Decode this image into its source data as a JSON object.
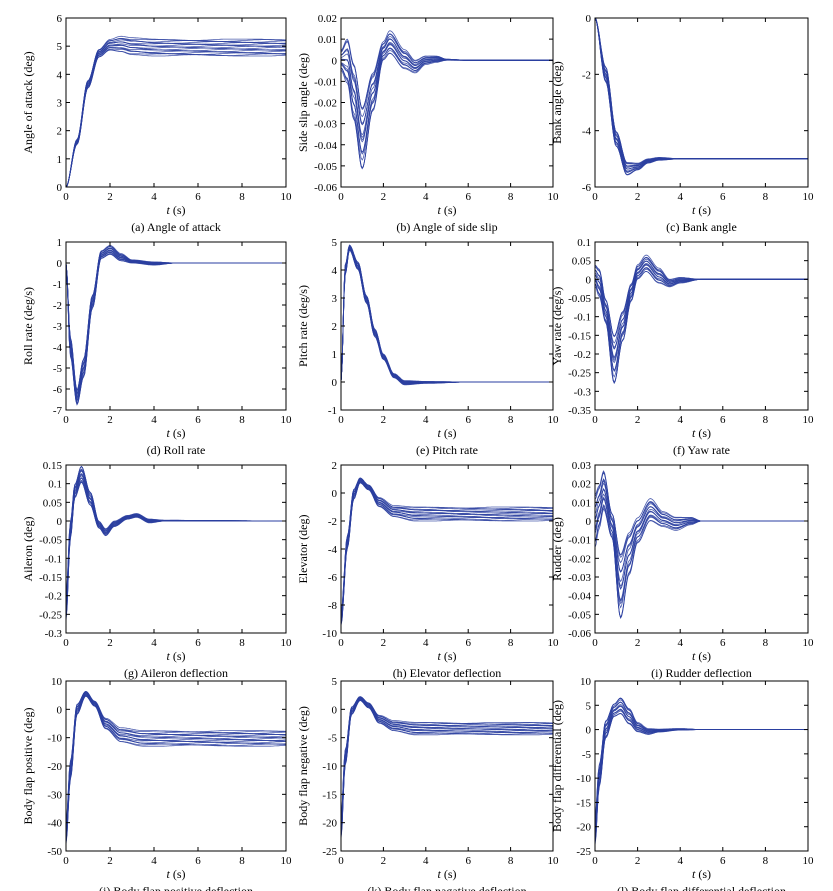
{
  "line_color": "#2b3fa0",
  "chart_data": [
    {
      "type": "line",
      "panel": "a",
      "caption": "(a) Angle of attack",
      "xlabel_var": "t",
      "xlabel_unit": " (s)",
      "ylabel": "Angle of attack (deg)",
      "xlim": [
        0,
        10
      ],
      "ylim": [
        0,
        6
      ],
      "xticks": [
        "0",
        "2",
        "4",
        "6",
        "8",
        "10"
      ],
      "yticks": [
        "0",
        "1",
        "2",
        "3",
        "4",
        "5",
        "6"
      ],
      "envelope": {
        "t": [
          0,
          0.5,
          1,
          1.5,
          2,
          2.5,
          3,
          4,
          6,
          10
        ],
        "lower": [
          0,
          1.5,
          3.5,
          4.6,
          4.85,
          4.8,
          4.7,
          4.65,
          4.65,
          4.65
        ],
        "upper": [
          0,
          1.7,
          3.8,
          4.9,
          5.25,
          5.35,
          5.3,
          5.25,
          5.25,
          5.25
        ]
      }
    },
    {
      "type": "line",
      "panel": "b",
      "caption": "(b) Angle of side slip",
      "xlabel_var": "t",
      "xlabel_unit": " (s)",
      "ylabel": "Side slip angle (deg)",
      "xlim": [
        0,
        10
      ],
      "ylim": [
        -0.06,
        0.02
      ],
      "xticks": [
        "0",
        "2",
        "4",
        "6",
        "8",
        "10"
      ],
      "yticks": [
        "-0.06",
        "-0.05",
        "-0.04",
        "-0.03",
        "-0.02",
        "-0.01",
        "0",
        "0.01",
        "0.02"
      ],
      "envelope": {
        "t": [
          0,
          0.3,
          0.6,
          1.0,
          1.5,
          2.0,
          2.3,
          3.0,
          3.5,
          4.0,
          4.5,
          5.0,
          6.0,
          10
        ],
        "lower": [
          -0.005,
          -0.012,
          -0.03,
          -0.054,
          -0.025,
          0.0,
          0.003,
          -0.004,
          -0.006,
          -0.002,
          -0.001,
          0.0,
          0.0,
          0.0
        ],
        "upper": [
          0.005,
          0.011,
          0.0,
          -0.02,
          -0.005,
          0.009,
          0.014,
          0.005,
          0.0,
          0.002,
          0.002,
          0.0005,
          0.0,
          0.0
        ]
      }
    },
    {
      "type": "line",
      "panel": "c",
      "caption": "(c) Bank angle",
      "xlabel_var": "t",
      "xlabel_unit": " (s)",
      "ylabel": "Bank angle (deg)",
      "xlim": [
        0,
        10
      ],
      "ylim": [
        -6,
        0
      ],
      "xticks": [
        "0",
        "2",
        "4",
        "6",
        "8",
        "10"
      ],
      "yticks": [
        "-6",
        "-4",
        "-2",
        "0"
      ],
      "envelope": {
        "t": [
          0,
          0.5,
          1.0,
          1.5,
          2.0,
          2.5,
          3.0,
          4.0,
          5.0,
          10
        ],
        "lower": [
          0,
          -2.3,
          -4.6,
          -5.6,
          -5.4,
          -5.15,
          -5.05,
          -5.0,
          -5.0,
          -5.0
        ],
        "upper": [
          0,
          -1.7,
          -4.0,
          -5.1,
          -5.15,
          -5.0,
          -4.95,
          -5.0,
          -5.0,
          -5.0
        ]
      }
    },
    {
      "type": "line",
      "panel": "d",
      "caption": "(d) Roll rate",
      "xlabel_var": "t",
      "xlabel_unit": " (s)",
      "ylabel": "Roll rate (deg/s)",
      "xlim": [
        0,
        10
      ],
      "ylim": [
        -7,
        1
      ],
      "xticks": [
        "0",
        "2",
        "4",
        "6",
        "8",
        "10"
      ],
      "yticks": [
        "-7",
        "-6",
        "-5",
        "-4",
        "-3",
        "-2",
        "-1",
        "0",
        "1"
      ],
      "envelope": {
        "t": [
          0,
          0.2,
          0.5,
          0.8,
          1.2,
          1.6,
          2.0,
          2.5,
          3.0,
          4.0,
          5.0,
          10
        ],
        "lower": [
          0,
          -4.5,
          -6.8,
          -5.5,
          -2.2,
          0.2,
          0.4,
          0.1,
          0.0,
          -0.1,
          0.0,
          0.0
        ],
        "upper": [
          0,
          -3.5,
          -6.0,
          -4.5,
          -1.5,
          0.6,
          0.85,
          0.45,
          0.15,
          0.05,
          0.0,
          0.0
        ]
      }
    },
    {
      "type": "line",
      "panel": "e",
      "caption": "(e) Pitch rate",
      "xlabel_var": "t",
      "xlabel_unit": " (s)",
      "ylabel": "Pitch rate (deg/s)",
      "xlim": [
        0,
        10
      ],
      "ylim": [
        -1,
        5
      ],
      "xticks": [
        "0",
        "2",
        "4",
        "6",
        "8",
        "10"
      ],
      "yticks": [
        "-1",
        "0",
        "1",
        "2",
        "3",
        "4",
        "5"
      ],
      "envelope": {
        "t": [
          0,
          0.2,
          0.4,
          0.8,
          1.2,
          1.6,
          2.0,
          2.5,
          3.0,
          4.0,
          6.0,
          10
        ],
        "lower": [
          0,
          3.8,
          4.7,
          4.0,
          2.8,
          1.6,
          0.8,
          0.15,
          -0.1,
          -0.05,
          0.0,
          0.0
        ],
        "upper": [
          0,
          4.2,
          4.9,
          4.3,
          3.1,
          1.9,
          1.0,
          0.3,
          0.05,
          0.02,
          0.0,
          0.0
        ]
      }
    },
    {
      "type": "line",
      "panel": "f",
      "caption": "(f) Yaw rate",
      "xlabel_var": "t",
      "xlabel_unit": " (s)",
      "ylabel": "Yaw rate (deg/s)",
      "xlim": [
        0,
        10
      ],
      "ylim": [
        -0.35,
        0.1
      ],
      "xticks": [
        "0",
        "2",
        "4",
        "6",
        "8",
        "10"
      ],
      "yticks": [
        "-0.35",
        "-0.3",
        "-0.25",
        "-0.2",
        "-0.15",
        "-0.1",
        "-0.05",
        "0",
        "0.05",
        "0.1"
      ],
      "envelope": {
        "t": [
          0,
          0.2,
          0.5,
          0.9,
          1.3,
          1.7,
          2.0,
          2.4,
          3.0,
          3.5,
          4.0,
          5.0,
          10
        ],
        "lower": [
          -0.02,
          -0.05,
          -0.12,
          -0.29,
          -0.17,
          -0.06,
          0.0,
          0.02,
          -0.01,
          -0.02,
          -0.01,
          0.0,
          0.0
        ],
        "upper": [
          0.04,
          0.03,
          -0.05,
          -0.14,
          -0.08,
          -0.01,
          0.04,
          0.065,
          0.03,
          0.0,
          0.005,
          0.0,
          0.0
        ]
      }
    },
    {
      "type": "line",
      "panel": "g",
      "caption": "(g) Aileron deflection",
      "xlabel_var": "t",
      "xlabel_unit": " (s)",
      "ylabel": "Aileron (deg)",
      "xlim": [
        0,
        10
      ],
      "ylim": [
        -0.3,
        0.15
      ],
      "xticks": [
        "0",
        "2",
        "4",
        "6",
        "8",
        "10"
      ],
      "yticks": [
        "-0.3",
        "-0.25",
        "-0.2",
        "-0.15",
        "-0.1",
        "-0.05",
        "0",
        "0.05",
        "0.1",
        "0.15"
      ],
      "envelope": {
        "t": [
          0,
          0.2,
          0.4,
          0.7,
          1.1,
          1.5,
          1.8,
          2.2,
          2.8,
          3.2,
          3.8,
          4.5,
          10
        ],
        "lower": [
          -0.27,
          -0.05,
          0.06,
          0.1,
          0.04,
          -0.02,
          -0.04,
          -0.015,
          0.005,
          0.01,
          -0.005,
          0.0,
          0.0
        ],
        "upper": [
          -0.2,
          0.0,
          0.1,
          0.15,
          0.08,
          0.0,
          -0.02,
          0.0,
          0.015,
          0.02,
          0.005,
          0.002,
          0.0
        ]
      }
    },
    {
      "type": "line",
      "panel": "h",
      "caption": "(h) Elevator deflection",
      "xlabel_var": "t",
      "xlabel_unit": " (s)",
      "ylabel": "Elevator (deg)",
      "xlim": [
        0,
        10
      ],
      "ylim": [
        -10,
        2
      ],
      "xticks": [
        "0",
        "2",
        "4",
        "6",
        "8",
        "10"
      ],
      "yticks": [
        "-10",
        "-8",
        "-6",
        "-4",
        "-2",
        "0",
        "2"
      ],
      "envelope": {
        "t": [
          0,
          0.3,
          0.6,
          0.9,
          1.3,
          1.8,
          2.5,
          3.5,
          5.0,
          10
        ],
        "lower": [
          -9.5,
          -4.0,
          -0.5,
          0.7,
          0.2,
          -1.0,
          -1.7,
          -2.0,
          -2.0,
          -2.0
        ],
        "upper": [
          -8.5,
          -3.0,
          0.3,
          1.1,
          0.6,
          -0.3,
          -0.9,
          -1.0,
          -1.0,
          -1.0
        ]
      }
    },
    {
      "type": "line",
      "panel": "i",
      "caption": "(i)  Rudder deflection",
      "xlabel_var": "t",
      "xlabel_unit": " (s)",
      "ylabel": "Rudder (deg)",
      "xlim": [
        0,
        10
      ],
      "ylim": [
        -0.06,
        0.03
      ],
      "xticks": [
        "0",
        "2",
        "4",
        "6",
        "8",
        "10"
      ],
      "yticks": [
        "-0.06",
        "-0.05",
        "-0.04",
        "-0.03",
        "-0.02",
        "-0.01",
        "0",
        "0.01",
        "0.02",
        "0.03"
      ],
      "envelope": {
        "t": [
          0,
          0.2,
          0.4,
          0.8,
          1.2,
          1.6,
          2.0,
          2.6,
          3.2,
          3.8,
          4.5,
          5.0,
          10
        ],
        "lower": [
          -0.015,
          -0.005,
          0.005,
          -0.01,
          -0.055,
          -0.03,
          -0.012,
          0.0,
          -0.003,
          -0.005,
          -0.002,
          0.0,
          0.0
        ],
        "upper": [
          0.015,
          0.02,
          0.028,
          0.005,
          -0.015,
          -0.005,
          0.002,
          0.012,
          0.005,
          0.002,
          0.002,
          0.0,
          0.0
        ]
      }
    },
    {
      "type": "line",
      "panel": "j",
      "caption": "(j) Body flap positive deflection",
      "xlabel_var": "t",
      "xlabel_unit": " (s)",
      "ylabel": "Body flap positive (deg)",
      "xlim": [
        0,
        10
      ],
      "ylim": [
        -50,
        10
      ],
      "xticks": [
        "0",
        "2",
        "4",
        "6",
        "8",
        "10"
      ],
      "yticks": [
        "-50",
        "-40",
        "-30",
        "-20",
        "-10",
        "0",
        "10"
      ],
      "envelope": {
        "t": [
          0,
          0.2,
          0.5,
          0.9,
          1.3,
          1.8,
          2.5,
          3.5,
          5.0,
          10
        ],
        "lower": [
          -48,
          -25,
          -2,
          4.5,
          1.0,
          -7.0,
          -11.5,
          -13.0,
          -13.0,
          -13.0
        ],
        "upper": [
          -40,
          -18,
          2,
          6.5,
          3.0,
          -3.0,
          -6.5,
          -7.5,
          -7.5,
          -7.5
        ]
      }
    },
    {
      "type": "line",
      "panel": "k",
      "caption": "(k) Body flap nagative deflection",
      "xlabel_var": "t",
      "xlabel_unit": " (s)",
      "ylabel": "Body flap negative (deg)",
      "xlim": [
        0,
        10
      ],
      "ylim": [
        -25,
        5
      ],
      "xticks": [
        "0",
        "2",
        "4",
        "6",
        "8",
        "10"
      ],
      "yticks": [
        "-25",
        "-20",
        "-15",
        "-10",
        "-5",
        "0",
        "5"
      ],
      "envelope": {
        "t": [
          0,
          0.2,
          0.5,
          0.9,
          1.3,
          1.8,
          2.5,
          3.5,
          5.0,
          10
        ],
        "lower": [
          -23,
          -10,
          -1.0,
          1.5,
          0.2,
          -2.5,
          -3.8,
          -4.5,
          -4.5,
          -4.5
        ],
        "upper": [
          -19,
          -7,
          0.5,
          2.3,
          1.2,
          -1.0,
          -2.0,
          -2.3,
          -2.3,
          -2.3
        ]
      }
    },
    {
      "type": "line",
      "panel": "l",
      "caption": "(l)  Body flap differential deflection",
      "xlabel_var": "t",
      "xlabel_unit": " (s)",
      "ylabel": "Body flap differential (deg)",
      "xlim": [
        0,
        10
      ],
      "ylim": [
        -25,
        10
      ],
      "xticks": [
        "0",
        "2",
        "4",
        "6",
        "8",
        "10"
      ],
      "yticks": [
        "-25",
        "-20",
        "-15",
        "-10",
        "-5",
        "0",
        "5",
        "10"
      ],
      "envelope": {
        "t": [
          0,
          0.2,
          0.5,
          0.9,
          1.2,
          1.6,
          2.0,
          2.5,
          3.0,
          4.0,
          5.0,
          10
        ],
        "lower": [
          -24,
          -12,
          -2,
          2.5,
          3.0,
          1.0,
          -0.5,
          -1.0,
          -0.5,
          -0.1,
          0.0,
          0.0
        ],
        "upper": [
          -18,
          -7,
          2,
          5.5,
          6.8,
          4.5,
          1.5,
          0.2,
          0.1,
          0.2,
          0.0,
          0.0
        ]
      }
    }
  ]
}
